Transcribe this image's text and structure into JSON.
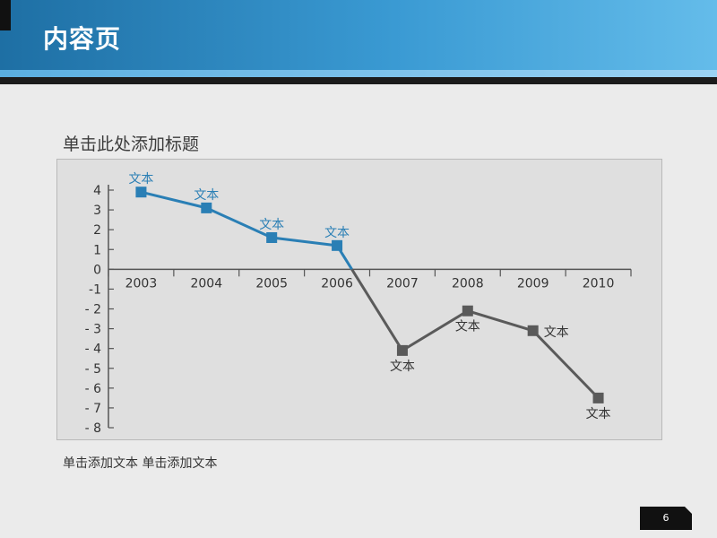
{
  "header": {
    "title": "内容页"
  },
  "main": {
    "chart_title": "单击此处添加标题",
    "caption": "单击添加文本 单击添加文本"
  },
  "footer": {
    "page_number": "6"
  },
  "colors": {
    "accent_blue": "#2a7fb5",
    "series_gray": "#5a5a5a"
  },
  "chart_data": {
    "type": "line",
    "title": "单击此处添加标题",
    "xlabel": "",
    "ylabel": "",
    "categories": [
      "2003",
      "2004",
      "2005",
      "2006",
      "2007",
      "2008",
      "2009",
      "2010"
    ],
    "y_tick_labels": [
      "4",
      "3",
      "2",
      "1",
      "0",
      "-1",
      "- 2",
      "- 3",
      "- 4",
      "- 5",
      "- 6",
      "- 7",
      "- 8"
    ],
    "ylim": [
      -8,
      4
    ],
    "grid": false,
    "series": [
      {
        "values": [
          3.9,
          3.1,
          1.6,
          1.2,
          -4.1,
          -2.1,
          -3.1,
          -6.5
        ]
      }
    ],
    "point_labels": [
      "文本",
      "文本",
      "文本",
      "文本",
      "文本",
      "文本",
      "文本",
      "文本"
    ]
  }
}
